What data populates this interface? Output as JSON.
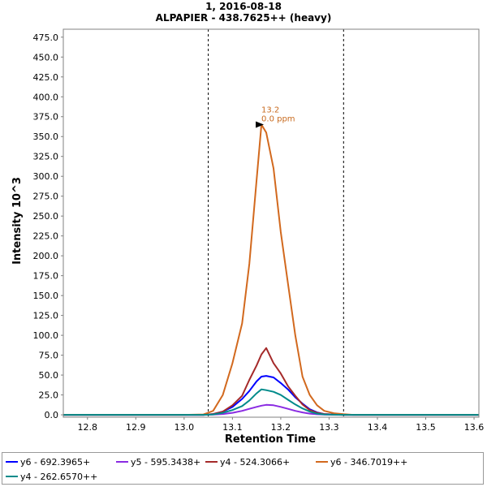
{
  "title_line1": "1, 2016-08-18",
  "title_line2": "ALPAPIER - 438.7625++ (heavy)",
  "chart_data": {
    "type": "line",
    "title": "1, 2016-08-18",
    "subtitle": "ALPAPIER - 438.7625++ (heavy)",
    "xlabel": "Retention Time",
    "ylabel": "Intensity 10^3",
    "xlim": [
      12.75,
      13.61
    ],
    "ylim": [
      -3,
      485
    ],
    "xticks": [
      "12.8",
      "12.9",
      "13.0",
      "13.1",
      "13.2",
      "13.3",
      "13.4",
      "13.5",
      "13.6"
    ],
    "yticks": [
      "0.0",
      "25.0",
      "50.0",
      "75.0",
      "100.0",
      "125.0",
      "150.0",
      "175.0",
      "200.0",
      "225.0",
      "250.0",
      "275.0",
      "300.0",
      "325.0",
      "350.0",
      "375.0",
      "400.0",
      "425.0",
      "450.0",
      "475.0"
    ],
    "boundaries": [
      13.05,
      13.33
    ],
    "peak_annotation": {
      "x": 13.17,
      "y": 365,
      "label_rt": "13.2",
      "label_ppm": "0.0 ppm",
      "color": "#c86a1e"
    },
    "x": [
      12.75,
      13.0,
      13.04,
      13.06,
      13.08,
      13.1,
      13.12,
      13.135,
      13.15,
      13.16,
      13.17,
      13.185,
      13.2,
      13.215,
      13.23,
      13.245,
      13.26,
      13.275,
      13.29,
      13.31,
      13.33,
      13.35,
      13.61
    ],
    "series": [
      {
        "name": "y6 - 692.3965+",
        "color": "#0000ff",
        "values": [
          0,
          0,
          0,
          1,
          4,
          10,
          20,
          30,
          42,
          48,
          49,
          47,
          40,
          32,
          22,
          14,
          7,
          3,
          1,
          0.5,
          0.2,
          0,
          0
        ]
      },
      {
        "name": "y5 - 595.3438+",
        "color": "#8a2be2",
        "values": [
          0,
          0,
          0,
          0.3,
          1,
          2.5,
          5,
          7.5,
          10,
          11.5,
          12.5,
          12,
          10,
          7.5,
          5,
          3,
          1.5,
          0.7,
          0.3,
          0.1,
          0,
          0,
          0
        ]
      },
      {
        "name": "y4 - 524.3066+",
        "color": "#a52a2a",
        "values": [
          0,
          0,
          0,
          1,
          4,
          12,
          24,
          44,
          62,
          76,
          84,
          65,
          52,
          36,
          24,
          13,
          6,
          2.5,
          1,
          0.3,
          0,
          0,
          0
        ]
      },
      {
        "name": "y6 - 346.7019++",
        "color": "#d2691e",
        "values": [
          0,
          0,
          0.5,
          5,
          25,
          65,
          115,
          190,
          295,
          365,
          355,
          310,
          230,
          165,
          100,
          48,
          25,
          12,
          5,
          2,
          0.8,
          0,
          0
        ]
      },
      {
        "name": "y4 - 262.6570++",
        "color": "#008b8b",
        "values": [
          0,
          0,
          0,
          0.5,
          2.5,
          6,
          11,
          18,
          27,
          32,
          31,
          29,
          25,
          19,
          13,
          8,
          4,
          1.5,
          0.5,
          0.2,
          0,
          0,
          0
        ]
      }
    ],
    "legend_position": "bottom",
    "grid": false
  }
}
